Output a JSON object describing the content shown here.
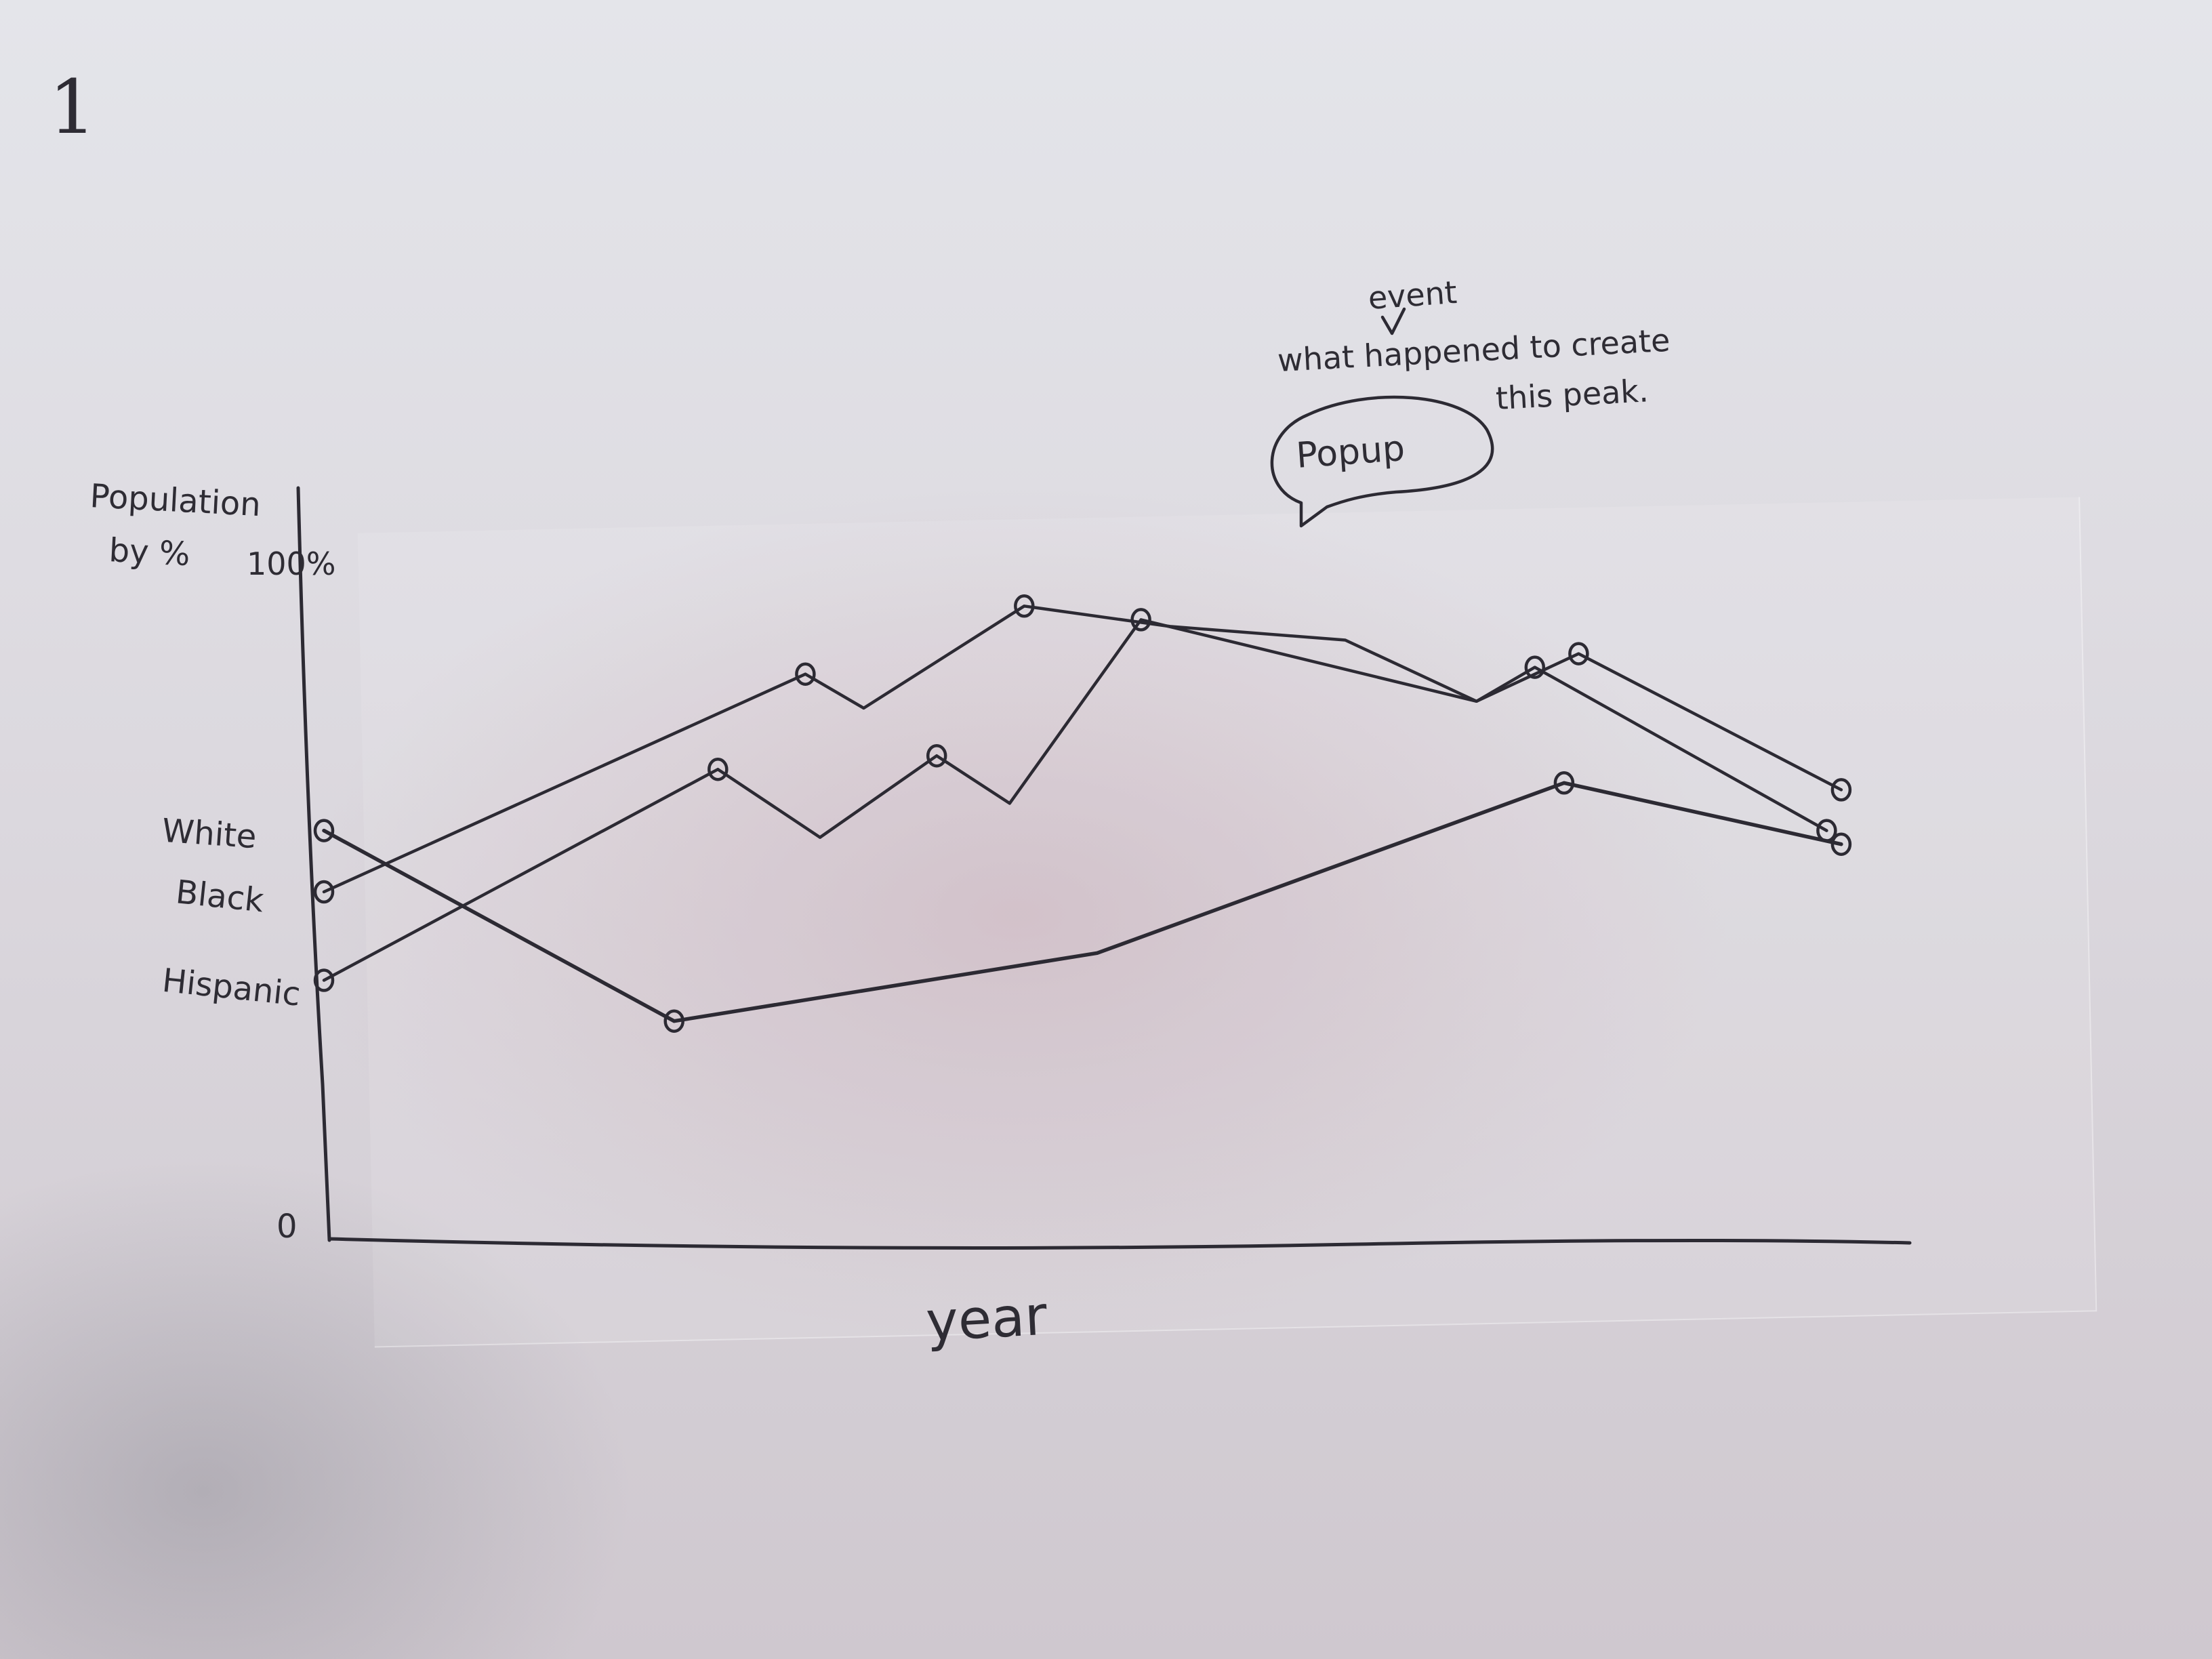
{
  "page_number": "1",
  "chart_data": {
    "type": "line",
    "ylabel": "Population by %",
    "xlabel": "year",
    "y_tick_labels": {
      "top": "100%",
      "bottom": "0"
    },
    "ylim": [
      0,
      100
    ],
    "xlim": [
      0,
      10
    ],
    "grid": false,
    "series": [
      {
        "name": "White",
        "points": [
          [
            0,
            60
          ],
          [
            2.4,
            32
          ],
          [
            5.3,
            42
          ],
          [
            8.5,
            67
          ],
          [
            10.4,
            58
          ]
        ]
      },
      {
        "name": "Black",
        "points": [
          [
            0,
            51
          ],
          [
            3.3,
            83
          ],
          [
            3.7,
            78
          ],
          [
            4.8,
            93
          ],
          [
            5.8,
            90
          ],
          [
            7.0,
            88
          ],
          [
            7.9,
            79
          ],
          [
            8.6,
            86
          ],
          [
            10.4,
            66
          ]
        ]
      },
      {
        "name": "Hispanic",
        "points": [
          [
            0,
            38
          ],
          [
            2.7,
            69
          ],
          [
            3.4,
            59
          ],
          [
            4.2,
            71
          ],
          [
            4.7,
            64
          ],
          [
            5.6,
            91
          ],
          [
            7.9,
            79
          ],
          [
            8.3,
            84
          ],
          [
            10.3,
            60
          ]
        ]
      }
    ],
    "annotations": {
      "popup_label": "Popup",
      "note_line1": "what happened to create",
      "note_line2": "this peak.",
      "note_insert": "event"
    }
  }
}
